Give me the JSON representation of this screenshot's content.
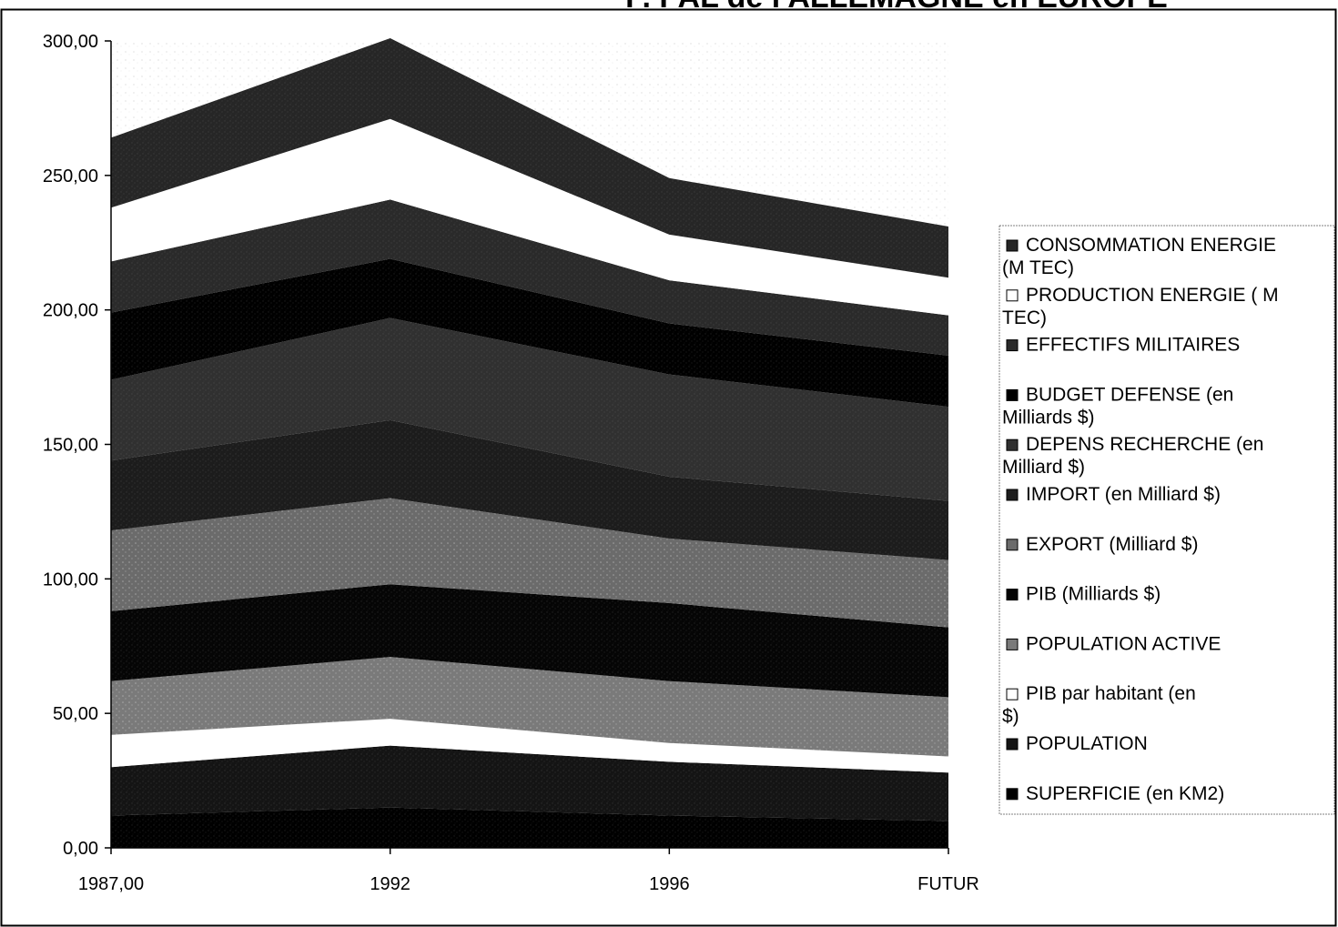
{
  "chart_data": {
    "type": "area",
    "stacked": true,
    "title": "P. PAL de l'ALLEMAGNE en EUROPE",
    "xlabel": "",
    "ylabel": "",
    "categories": [
      "1987,00",
      "1992",
      "1996",
      "FUTUR"
    ],
    "ylim": [
      0,
      300
    ],
    "yticks": [
      "0,00",
      "50,00",
      "100,00",
      "150,00",
      "200,00",
      "250,00",
      "300,00"
    ],
    "grid": false,
    "legend_position": "right",
    "series": [
      {
        "name": "SUPERFICIE (en KM2)",
        "values": [
          12,
          15,
          12,
          10
        ],
        "color": "#000000"
      },
      {
        "name": "POPULATION",
        "values": [
          18,
          23,
          20,
          18
        ],
        "color": "#141414"
      },
      {
        "name": "PIB par habitant (en $)",
        "values": [
          12,
          10,
          7,
          6
        ],
        "color": "#ffffff"
      },
      {
        "name": "POPULATION ACTIVE",
        "values": [
          20,
          23,
          23,
          22
        ],
        "color": "#7a7a7a"
      },
      {
        "name": "PIB (Milliards $)",
        "values": [
          26,
          27,
          29,
          26
        ],
        "color": "#050505"
      },
      {
        "name": "EXPORT (Milliard $)",
        "values": [
          30,
          32,
          24,
          25
        ],
        "color": "#6b6b6b"
      },
      {
        "name": "IMPORT (en Milliard $)",
        "values": [
          26,
          29,
          23,
          22
        ],
        "color": "#1c1c1c"
      },
      {
        "name": "DEPENS RECHERCHE (en Milliard $)",
        "values": [
          30,
          38,
          38,
          35
        ],
        "color": "#303030"
      },
      {
        "name": "BUDGET DEFENSE (en Milliards $)",
        "values": [
          25,
          22,
          19,
          19
        ],
        "color": "#000000"
      },
      {
        "name": "EFFECTIFS MILITAIRES",
        "values": [
          19,
          22,
          16,
          15
        ],
        "color": "#2a2a2a"
      },
      {
        "name": "PRODUCTION ENERGIE ( M TEC)",
        "values": [
          20,
          30,
          17,
          14
        ],
        "color": "#ffffff"
      },
      {
        "name": "CONSOMMATION ENERGIE (M TEC)",
        "values": [
          26,
          30,
          21,
          19
        ],
        "color": "#262626"
      }
    ]
  }
}
